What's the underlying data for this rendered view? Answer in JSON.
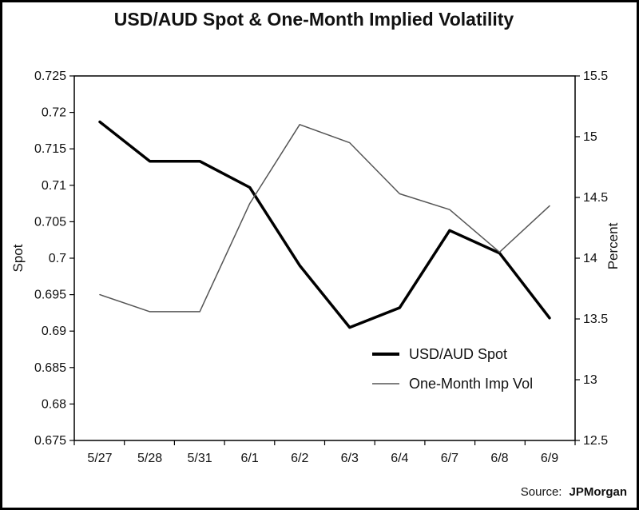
{
  "chart_data": {
    "type": "line",
    "title": "USD/AUD Spot & One-Month Implied Volatility",
    "categories": [
      "5/27",
      "5/28",
      "5/31",
      "6/1",
      "6/2",
      "6/3",
      "6/4",
      "6/7",
      "6/8",
      "6/9"
    ],
    "ylabel": "Spot",
    "y2label": "Percent",
    "ylim": [
      0.675,
      0.725
    ],
    "y2lim": [
      12.5,
      15.5
    ],
    "yticks": [
      "0.725",
      "0.72",
      "0.715",
      "0.71",
      "0.705",
      "0.7",
      "0.695",
      "0.69",
      "0.685",
      "0.68",
      "0.675"
    ],
    "y2ticks": [
      "15.5",
      "15",
      "14.5",
      "14",
      "13.5",
      "13",
      "12.5"
    ],
    "series": [
      {
        "name": "USD/AUD Spot",
        "axis": "left",
        "color": "#000000",
        "values": [
          0.7187,
          0.7133,
          0.7133,
          0.7097,
          0.699,
          0.6905,
          0.6932,
          0.7038,
          0.7007,
          0.6918
        ]
      },
      {
        "name": "One-Month Imp Vol",
        "axis": "right",
        "color": "#555555",
        "values": [
          13.7,
          13.56,
          13.56,
          14.45,
          15.1,
          14.95,
          14.53,
          14.4,
          14.05,
          14.43
        ]
      }
    ],
    "legend_position": "lower-right",
    "grid": false
  },
  "source": {
    "prefix": "Source:",
    "brand": "JPMorgan"
  }
}
